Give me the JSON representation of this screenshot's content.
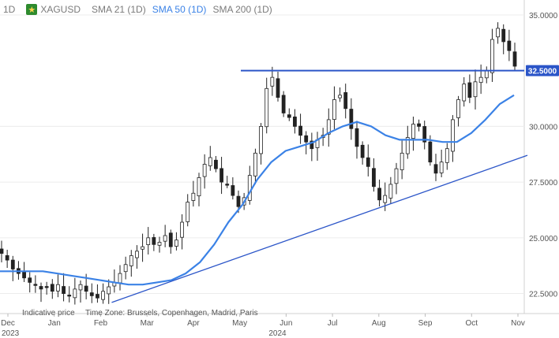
{
  "legend": {
    "timeframe": "1D",
    "symbol": "XAGUSD",
    "sma21": "SMA 21 (1D)",
    "sma50": "SMA 50 (1D)",
    "sma200": "SMA 200 (1D)"
  },
  "notes": {
    "indicative": "Indicative price",
    "timezone": "Time Zone: Brussels, Copenhagen, Madrid, Paris"
  },
  "colors": {
    "candle": "#222222",
    "sma50": "#3b82e6",
    "lines": "#2b55c8",
    "price_label": "#2b55c8"
  },
  "chart_data": {
    "type": "candlestick",
    "symbol": "XAGUSD",
    "timeframe": "1D",
    "x_labels": [
      "Dec",
      "Jan",
      "Feb",
      "Mar",
      "Apr",
      "May",
      "Jun",
      "Jul",
      "Aug",
      "Sep",
      "Oct",
      "Nov"
    ],
    "year_labels": [
      "2023",
      "2024"
    ],
    "y_ticks": [
      "35.0000",
      "30.0000",
      "27.5000",
      "25.0000",
      "22.5000"
    ],
    "ylim": [
      21.6,
      35.6
    ],
    "last_price": "32.5000",
    "close": [
      24.3,
      24.0,
      23.6,
      23.4,
      23.2,
      23.0,
      22.9,
      22.7,
      22.8,
      22.6,
      22.9,
      22.5,
      22.4,
      22.7,
      22.9,
      22.6,
      22.4,
      22.3,
      22.6,
      22.8,
      23.0,
      23.4,
      23.8,
      24.2,
      24.4,
      24.6,
      25.0,
      24.7,
      24.8,
      25.1,
      24.6,
      24.9,
      25.7,
      26.6,
      27.0,
      27.7,
      28.3,
      28.6,
      28.1,
      27.5,
      27.4,
      26.9,
      26.4,
      26.8,
      27.8,
      28.8,
      30.0,
      31.7,
      32.2,
      31.3,
      30.6,
      30.4,
      30.0,
      29.6,
      29.3,
      29.0,
      29.4,
      29.6,
      30.3,
      31.2,
      31.4,
      30.8,
      29.9,
      29.1,
      28.6,
      28.2,
      27.3,
      26.7,
      26.9,
      27.4,
      28.1,
      28.8,
      29.5,
      30.1,
      30.0,
      29.3,
      28.4,
      27.9,
      28.4,
      29.0,
      30.3,
      31.2,
      31.9,
      31.3,
      32.0,
      32.2,
      32.5,
      33.9,
      34.4,
      33.8,
      33.4,
      32.7
    ],
    "sma50": [
      23.5,
      23.5,
      23.5,
      23.5,
      23.4,
      23.3,
      23.2,
      23.1,
      23.0,
      22.9,
      22.9,
      23.0,
      23.1,
      23.4,
      23.9,
      24.7,
      25.7,
      26.5,
      27.6,
      28.4,
      28.9,
      29.1,
      29.3,
      29.7,
      30.0,
      30.2,
      30.0,
      29.6,
      29.4,
      29.4,
      29.4,
      29.3,
      29.3,
      29.7,
      30.3,
      31.0,
      31.4
    ],
    "resistance": 32.5,
    "trendline": [
      {
        "x": "Feb",
        "y": 22.1
      },
      {
        "x": "Nov",
        "y": 28.7
      }
    ]
  }
}
